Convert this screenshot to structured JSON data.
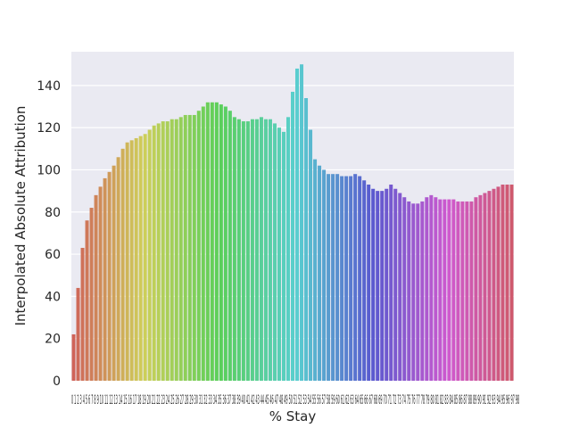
{
  "chart_data": {
    "type": "bar",
    "title": "",
    "xlabel": "% Stay",
    "ylabel": "Interpolated Absolute Attribution",
    "ylim": [
      0,
      156
    ],
    "yticks": [
      0,
      20,
      40,
      60,
      80,
      100,
      120,
      140
    ],
    "grid": true,
    "legend": "none",
    "x_tick_text": "0 1 2 3 4 5 6 7 8 9 10 11 12 13 14 15 16 17 18 19 20 21 22 23 24 25 26 27 28 29 30 31 32 33 34 35 36 37 38 39 40 41 42 43 44 45 46 47 48 49 50 51 52 53 54 55 56 57 58 59 60 61 62 63 64 65 66 67 68 69 70 71 72 73 74 75 76 77 78 79 80 81 82 83 84 85 86 87 88 89 90 91 92 93 94 95 96 97 98",
    "values": [
      22,
      44,
      63,
      76,
      82,
      88,
      92,
      96,
      99,
      102,
      106,
      110,
      113,
      114,
      115,
      116,
      117,
      119,
      121,
      122,
      123,
      123,
      124,
      124,
      125,
      126,
      126,
      126,
      128,
      130,
      132,
      132,
      132,
      131,
      130,
      128,
      125,
      124,
      123,
      123,
      124,
      124,
      125,
      124,
      124,
      122,
      120,
      118,
      125,
      137,
      148,
      150,
      134,
      119,
      105,
      102,
      100,
      98,
      98,
      98,
      97,
      97,
      97,
      98,
      97,
      95,
      93,
      91,
      90,
      90,
      91,
      93,
      91,
      89,
      87,
      85,
      84,
      84,
      85,
      87,
      88,
      87,
      86,
      86,
      86,
      86,
      85,
      85,
      85,
      85,
      87,
      88,
      89,
      90,
      91,
      92,
      93,
      93,
      93
    ]
  }
}
